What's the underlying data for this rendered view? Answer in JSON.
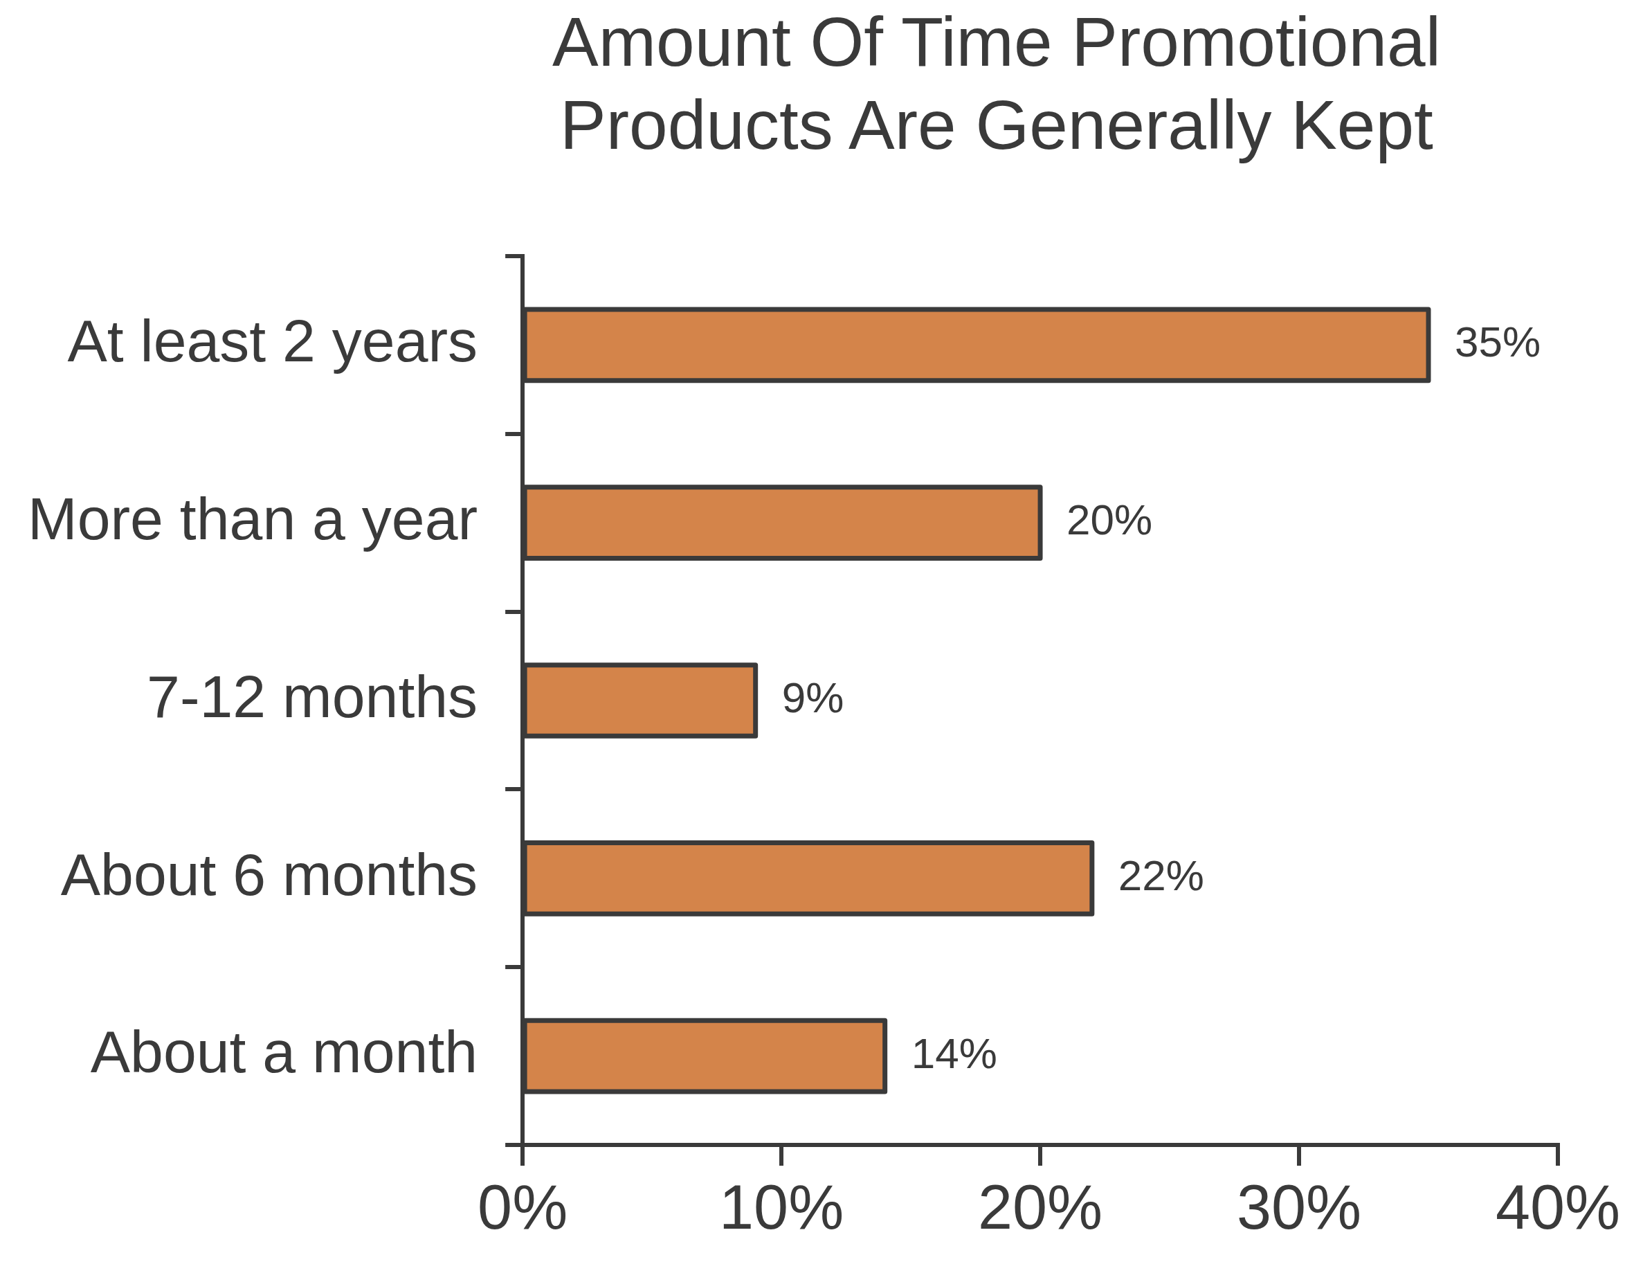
{
  "chart_data": {
    "type": "bar",
    "orientation": "horizontal",
    "title": "Amount Of Time Promotional Products Are Generally Kept",
    "categories": [
      "At least 2 years",
      "More than a year",
      "7-12 months",
      "About 6 months",
      "About a month"
    ],
    "values": [
      35,
      20,
      9,
      22,
      14
    ],
    "value_labels": [
      "35%",
      "20%",
      "9%",
      "22%",
      "14%"
    ],
    "color": "#d4844a",
    "xlim": [
      0,
      40
    ],
    "xticks": [
      {
        "value": 0,
        "label": "0%"
      },
      {
        "value": 10,
        "label": "10%"
      },
      {
        "value": 20,
        "label": "20%"
      },
      {
        "value": 30,
        "label": "30%"
      },
      {
        "value": 40,
        "label": "40%"
      }
    ],
    "grid": false,
    "legend": false
  }
}
